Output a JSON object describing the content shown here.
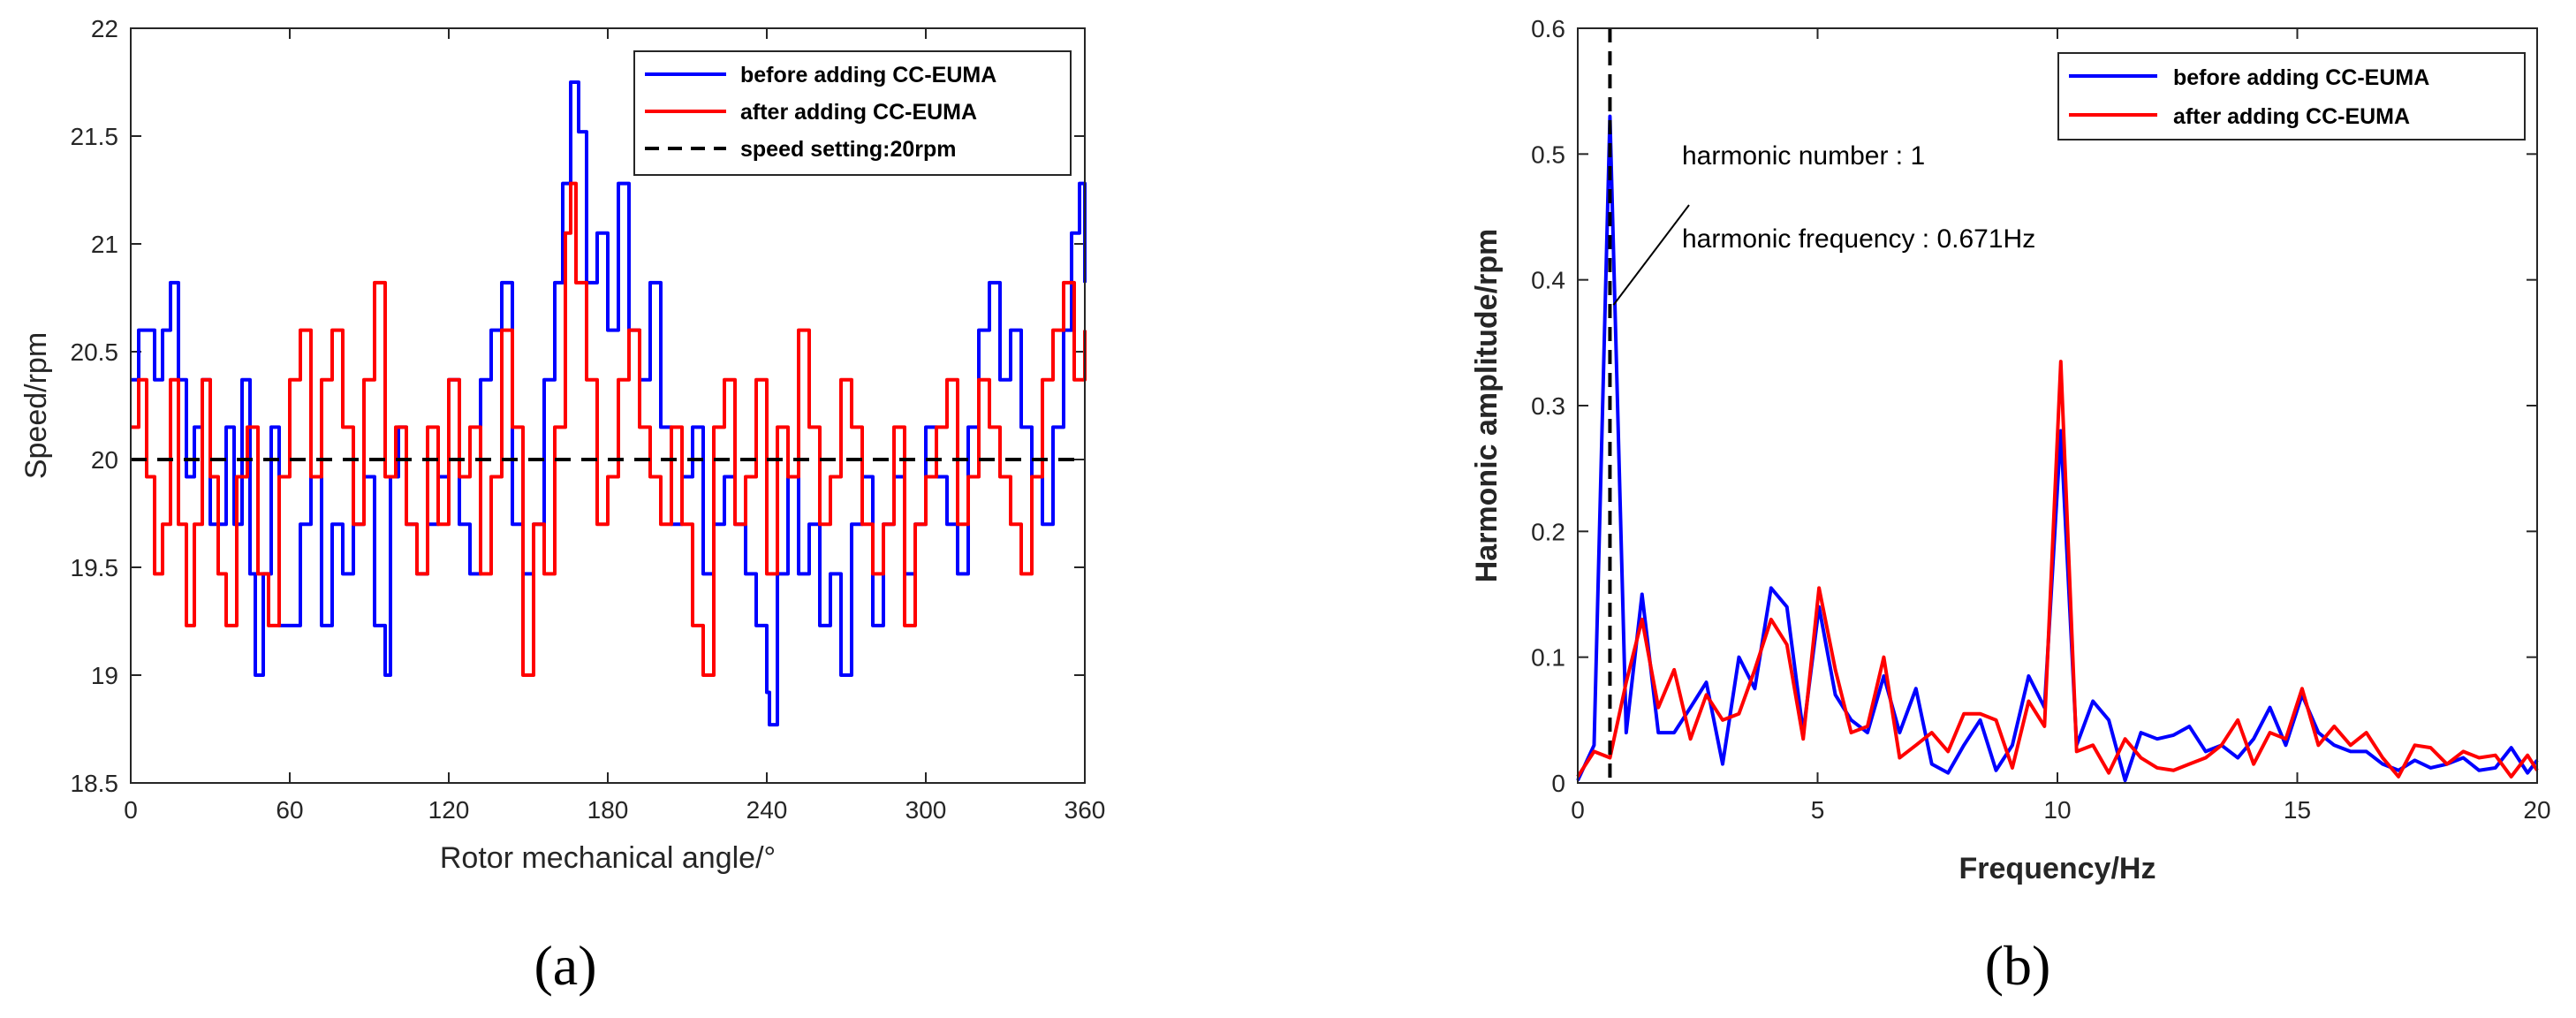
{
  "chart_data": [
    {
      "type": "line",
      "panel_label": "(a)",
      "xlabel": "Rotor mechanical angle/°",
      "ylabel": "Speed/rpm",
      "xlim": [
        0,
        360
      ],
      "ylim": [
        18.5,
        22
      ],
      "xticks": [
        "0",
        "60",
        "120",
        "180",
        "240",
        "300",
        "360"
      ],
      "yticks": [
        "18.5",
        "19",
        "19.5",
        "20",
        "20.5",
        "21",
        "21.5",
        "22"
      ],
      "legend_position": "top-right",
      "colors": {
        "before": "#0000ff",
        "after": "#ff0000",
        "setting": "#000000"
      },
      "series": [
        {
          "name": "before adding CC-EUMA",
          "x": [
            0,
            3,
            6,
            9,
            12,
            15,
            18,
            21,
            24,
            27,
            30,
            33,
            36,
            39,
            42,
            45,
            47,
            50,
            53,
            56,
            60,
            64,
            68,
            72,
            76,
            80,
            84,
            88,
            92,
            96,
            98,
            101,
            104,
            108,
            112,
            116,
            120,
            124,
            128,
            132,
            136,
            140,
            144,
            148,
            152,
            156,
            160,
            163,
            166,
            169,
            172,
            176,
            180,
            184,
            188,
            192,
            196,
            200,
            204,
            208,
            212,
            216,
            220,
            224,
            228,
            232,
            236,
            240,
            241,
            244,
            248,
            252,
            256,
            260,
            264,
            268,
            272,
            276,
            280,
            284,
            288,
            292,
            296,
            300,
            304,
            308,
            312,
            316,
            320,
            324,
            328,
            332,
            336,
            340,
            344,
            348,
            352,
            355,
            358,
            360
          ],
          "values": [
            20.37,
            20.6,
            20.6,
            20.37,
            20.6,
            20.82,
            20.37,
            19.92,
            20.15,
            20.37,
            19.7,
            19.7,
            20.15,
            19.7,
            20.37,
            19.47,
            19.0,
            19.47,
            20.15,
            19.23,
            19.23,
            19.7,
            19.92,
            19.23,
            19.7,
            19.47,
            19.7,
            19.92,
            19.23,
            19.0,
            19.92,
            20.15,
            19.7,
            19.47,
            19.7,
            19.92,
            20.37,
            19.7,
            19.47,
            20.37,
            20.6,
            20.82,
            19.7,
            19.47,
            19.7,
            20.37,
            20.82,
            21.28,
            21.75,
            21.52,
            20.82,
            21.05,
            20.6,
            21.28,
            20.6,
            20.37,
            20.82,
            20.15,
            19.7,
            19.92,
            20.15,
            19.47,
            19.7,
            19.92,
            19.7,
            19.47,
            19.23,
            18.92,
            18.77,
            19.47,
            19.92,
            19.47,
            19.7,
            19.23,
            19.47,
            19.0,
            19.7,
            19.92,
            19.23,
            19.7,
            19.92,
            19.47,
            19.7,
            20.15,
            19.92,
            19.7,
            19.47,
            20.15,
            20.6,
            20.82,
            20.37,
            20.6,
            20.15,
            19.92,
            19.7,
            20.15,
            20.6,
            21.05,
            21.28,
            20.82
          ]
        },
        {
          "name": "after adding CC-EUMA",
          "x": [
            0,
            3,
            6,
            9,
            12,
            15,
            18,
            21,
            24,
            27,
            30,
            33,
            36,
            40,
            44,
            48,
            52,
            56,
            60,
            64,
            68,
            72,
            76,
            80,
            84,
            88,
            92,
            96,
            100,
            104,
            108,
            112,
            116,
            120,
            124,
            128,
            132,
            136,
            140,
            144,
            148,
            152,
            156,
            160,
            164,
            166,
            168,
            172,
            176,
            180,
            184,
            188,
            192,
            196,
            200,
            204,
            208,
            212,
            216,
            220,
            224,
            228,
            232,
            236,
            240,
            244,
            248,
            252,
            256,
            260,
            264,
            268,
            272,
            276,
            280,
            284,
            288,
            292,
            296,
            300,
            304,
            308,
            312,
            316,
            320,
            324,
            328,
            332,
            336,
            340,
            344,
            348,
            352,
            356,
            360
          ],
          "values": [
            20.15,
            20.37,
            19.92,
            19.47,
            19.7,
            20.37,
            19.7,
            19.23,
            19.7,
            20.37,
            19.92,
            19.47,
            19.23,
            19.92,
            20.15,
            19.47,
            19.23,
            19.92,
            20.37,
            20.6,
            19.92,
            20.37,
            20.6,
            20.15,
            19.7,
            20.37,
            20.82,
            19.92,
            20.15,
            19.7,
            19.47,
            20.15,
            19.7,
            20.37,
            19.92,
            20.15,
            19.47,
            19.92,
            20.6,
            20.15,
            19.0,
            19.7,
            19.47,
            20.15,
            21.05,
            21.28,
            20.82,
            20.37,
            19.7,
            19.92,
            20.37,
            20.6,
            20.15,
            19.92,
            19.7,
            20.15,
            19.7,
            19.23,
            19.0,
            20.15,
            20.37,
            19.7,
            19.92,
            20.37,
            19.47,
            20.15,
            19.92,
            20.6,
            20.15,
            19.7,
            19.92,
            20.37,
            20.15,
            19.7,
            19.47,
            19.7,
            20.15,
            19.23,
            19.7,
            19.92,
            20.15,
            20.37,
            19.7,
            19.92,
            20.37,
            20.15,
            19.92,
            19.7,
            19.47,
            19.92,
            20.37,
            20.6,
            20.82,
            20.37,
            20.6
          ]
        },
        {
          "name": "speed setting:20rpm",
          "x": [
            0,
            360
          ],
          "values": [
            20,
            20
          ],
          "dashed": true
        }
      ]
    },
    {
      "type": "line",
      "panel_label": "(b)",
      "xlabel": "Frequency/Hz",
      "ylabel": "Harmonic amplitude/rpm",
      "xlim": [
        0,
        20
      ],
      "ylim": [
        0,
        0.6
      ],
      "xticks": [
        "0",
        "5",
        "10",
        "15",
        "20"
      ],
      "yticks": [
        "0",
        "0.1",
        "0.2",
        "0.3",
        "0.4",
        "0.5",
        "0.6"
      ],
      "legend_position": "top-right",
      "annotation": {
        "line1": "harmonic number : 1",
        "line2": "harmonic frequency : 0.671Hz",
        "x": 0.671,
        "y": 0.38
      },
      "vline_x": 0.671,
      "colors": {
        "before": "#0000ff",
        "after": "#ff0000",
        "vline": "#000000"
      },
      "series": [
        {
          "name": "before adding CC-EUMA",
          "x": [
            0,
            0.34,
            0.671,
            1.01,
            1.34,
            1.68,
            2.01,
            2.35,
            2.68,
            3.02,
            3.36,
            3.69,
            4.03,
            4.36,
            4.7,
            5.03,
            5.37,
            5.7,
            6.04,
            6.38,
            6.71,
            7.05,
            7.38,
            7.72,
            8.05,
            8.39,
            8.72,
            9.06,
            9.4,
            9.73,
            10.07,
            10.4,
            10.74,
            11.07,
            11.41,
            11.74,
            12.08,
            12.42,
            12.75,
            13.09,
            13.42,
            13.76,
            14.09,
            14.43,
            14.76,
            15.1,
            15.44,
            15.77,
            16.11,
            16.44,
            16.78,
            17.11,
            17.45,
            17.78,
            18.12,
            18.46,
            18.79,
            19.13,
            19.46,
            19.8,
            20
          ],
          "values": [
            0.002,
            0.03,
            0.53,
            0.04,
            0.15,
            0.04,
            0.04,
            0.06,
            0.08,
            0.015,
            0.1,
            0.075,
            0.155,
            0.14,
            0.04,
            0.14,
            0.07,
            0.05,
            0.04,
            0.085,
            0.04,
            0.075,
            0.015,
            0.008,
            0.03,
            0.05,
            0.01,
            0.03,
            0.085,
            0.06,
            0.28,
            0.03,
            0.065,
            0.05,
            0.002,
            0.04,
            0.035,
            0.038,
            0.045,
            0.025,
            0.03,
            0.02,
            0.035,
            0.06,
            0.03,
            0.07,
            0.04,
            0.03,
            0.025,
            0.025,
            0.015,
            0.01,
            0.018,
            0.012,
            0.015,
            0.02,
            0.01,
            0.012,
            0.028,
            0.008,
            0.018
          ]
        },
        {
          "name": "after adding CC-EUMA",
          "x": [
            0,
            0.34,
            0.671,
            1.01,
            1.34,
            1.68,
            2.01,
            2.35,
            2.68,
            3.02,
            3.36,
            3.69,
            4.03,
            4.36,
            4.7,
            5.03,
            5.37,
            5.7,
            6.04,
            6.38,
            6.71,
            7.05,
            7.38,
            7.72,
            8.05,
            8.39,
            8.72,
            9.06,
            9.4,
            9.73,
            10.07,
            10.4,
            10.74,
            11.07,
            11.41,
            11.74,
            12.08,
            12.42,
            12.75,
            13.09,
            13.42,
            13.76,
            14.09,
            14.43,
            14.76,
            15.1,
            15.44,
            15.77,
            16.11,
            16.44,
            16.78,
            17.11,
            17.45,
            17.78,
            18.12,
            18.46,
            18.79,
            19.13,
            19.46,
            19.8,
            20
          ],
          "values": [
            0.005,
            0.025,
            0.02,
            0.08,
            0.13,
            0.06,
            0.09,
            0.035,
            0.07,
            0.05,
            0.055,
            0.09,
            0.13,
            0.11,
            0.035,
            0.155,
            0.09,
            0.04,
            0.045,
            0.1,
            0.02,
            0.03,
            0.04,
            0.025,
            0.055,
            0.055,
            0.05,
            0.012,
            0.065,
            0.045,
            0.335,
            0.025,
            0.03,
            0.008,
            0.035,
            0.02,
            0.012,
            0.01,
            0.015,
            0.02,
            0.03,
            0.05,
            0.015,
            0.04,
            0.035,
            0.075,
            0.03,
            0.045,
            0.03,
            0.04,
            0.02,
            0.005,
            0.03,
            0.028,
            0.015,
            0.025,
            0.02,
            0.022,
            0.005,
            0.022,
            0.01
          ]
        }
      ]
    }
  ]
}
